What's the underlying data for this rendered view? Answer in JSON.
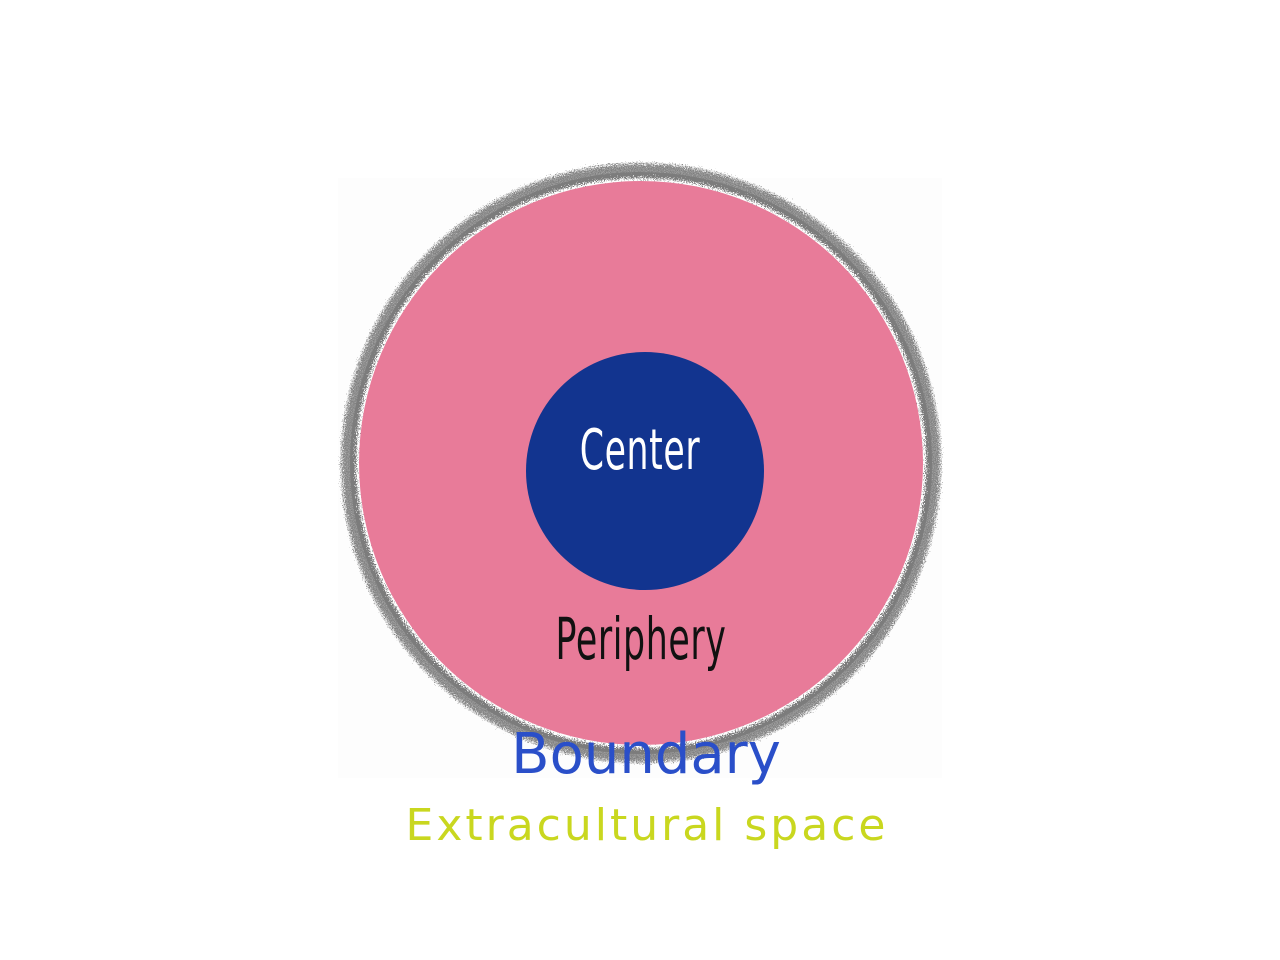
{
  "diagram": {
    "center": {
      "label": "Center",
      "color": "#12348f",
      "text_color": "#ffffff"
    },
    "periphery": {
      "label": "Periphery",
      "color": "#e87b99",
      "text_color": "#111111"
    },
    "boundary": {
      "label": "Boundary",
      "color": "#7b7b7b",
      "text_color": "#2a4fc9"
    },
    "extracultural": {
      "label": "Extracultural space",
      "text_color": "#c9d71f"
    }
  }
}
